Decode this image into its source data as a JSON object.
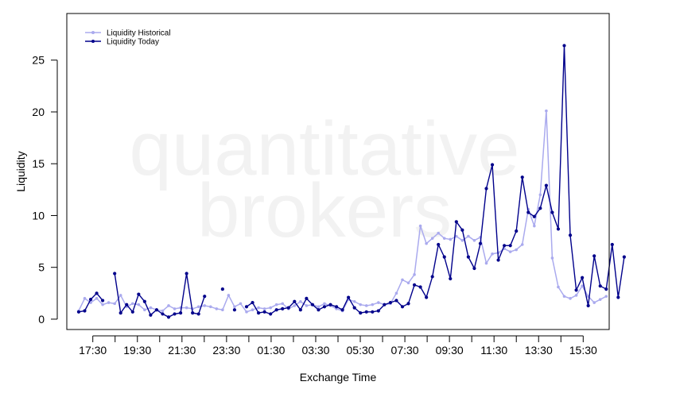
{
  "watermark": {
    "line1": "quantitative",
    "line2": "brokers"
  },
  "chart_data": {
    "type": "line",
    "xlabel": "Exchange Time",
    "ylabel": "Liquidity",
    "ylim": [
      -1,
      29.5
    ],
    "yticks": [
      0,
      5,
      10,
      15,
      20,
      25
    ],
    "xticks": [
      "17:30",
      "19:30",
      "21:30",
      "23:30",
      "01:30",
      "03:30",
      "05:30",
      "07:30",
      "09:30",
      "11:30",
      "13:30",
      "15:30"
    ],
    "xtick_positions": [
      1,
      7,
      13,
      19,
      25,
      31,
      37,
      43,
      49,
      55,
      61,
      67
    ],
    "x_range": [
      -2.5,
      70.5
    ],
    "x_minor_ticks": [
      1,
      4,
      7,
      10,
      13,
      16,
      19,
      22,
      25,
      28,
      31,
      34,
      37,
      40,
      43,
      46,
      49,
      52,
      55,
      58,
      61,
      64,
      67
    ],
    "legend_position": "top-left",
    "series": [
      {
        "name": "Liquidity Historical",
        "color": "#aaaaee",
        "values": [
          0.8,
          2.0,
          1.6,
          2.0,
          1.4,
          1.6,
          1.5,
          2.3,
          1.2,
          1.5,
          1.4,
          0.9,
          1.1,
          0.9,
          0.8,
          1.3,
          1.0,
          1.1,
          1.1,
          1.0,
          1.2,
          1.3,
          1.2,
          1.0,
          0.9,
          2.3,
          1.2,
          1.5,
          0.7,
          0.9,
          1.1,
          1.0,
          1.1,
          1.4,
          1.5,
          1.0,
          1.3,
          1.7,
          1.3,
          1.4,
          1.2,
          1.5,
          1.3,
          1.0,
          0.8,
          1.9,
          1.7,
          1.4,
          1.3,
          1.4,
          1.6,
          1.4,
          1.5,
          2.5,
          3.8,
          3.5,
          4.3,
          9.0,
          7.3,
          7.8,
          8.3,
          7.8,
          7.7,
          8.0,
          7.6,
          8.0,
          7.6,
          7.9,
          5.4,
          6.3,
          6.4,
          6.8,
          6.5,
          6.7,
          7.2,
          10.6,
          9.0,
          12.0,
          20.1,
          5.9,
          3.1,
          2.2,
          2.0,
          2.3,
          3.2,
          2.2,
          1.6,
          1.9,
          2.2
        ]
      },
      {
        "name": "Liquidity Today",
        "color": "#00008b",
        "values": [
          0.7,
          0.8,
          1.9,
          2.5,
          1.8,
          null,
          4.4,
          0.6,
          1.4,
          0.7,
          2.4,
          1.7,
          0.4,
          0.9,
          0.5,
          0.2,
          0.5,
          0.6,
          4.4,
          0.6,
          0.5,
          2.2,
          null,
          null,
          2.9,
          null,
          0.9,
          null,
          1.2,
          1.6,
          0.6,
          0.7,
          0.5,
          0.9,
          1.0,
          1.1,
          1.7,
          0.9,
          2.0,
          1.4,
          0.9,
          1.2,
          1.4,
          1.2,
          0.9,
          2.1,
          1.1,
          0.6,
          0.7,
          0.7,
          0.8,
          1.4,
          1.6,
          1.8,
          1.2,
          1.5,
          3.3,
          3.1,
          2.1,
          4.1,
          7.2,
          6.0,
          3.9,
          9.4,
          8.6,
          6.0,
          4.9,
          7.3,
          12.6,
          14.9,
          5.7,
          7.1,
          7.1,
          8.5,
          13.7,
          10.3,
          9.9,
          10.7,
          12.9,
          10.3,
          8.7,
          26.4,
          8.1,
          2.8,
          4.0,
          1.3,
          6.1,
          3.2,
          2.9,
          7.2,
          2.1,
          6.0
        ]
      }
    ]
  }
}
